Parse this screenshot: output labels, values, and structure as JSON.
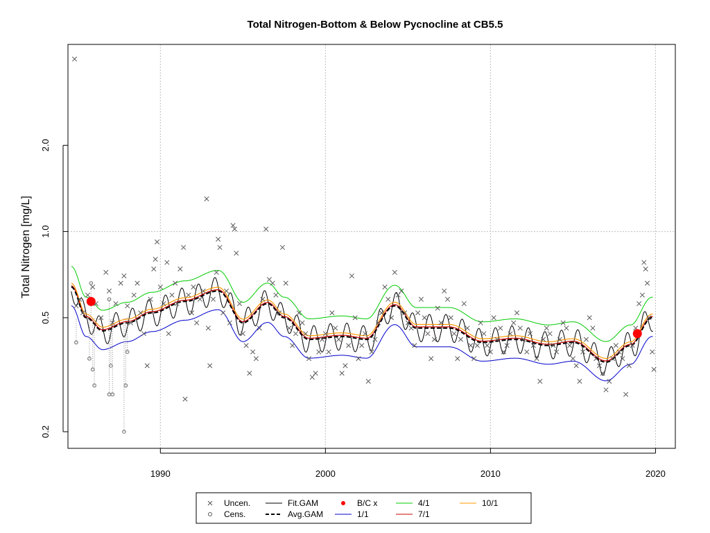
{
  "chart_data": {
    "type": "scatter",
    "title": "Total Nitrogen-Bottom & Below Pycnocline at CB5.5",
    "xlabel": "",
    "ylabel": "Total Nitrogen [mg/L]",
    "log_y": true,
    "grid": true,
    "xlim": [
      1984.4,
      2021.2
    ],
    "ylim": [
      0.175,
      4.5
    ],
    "x_ticks": [
      1990,
      2000,
      2010,
      2020
    ],
    "x_tick_labels": [
      "1990",
      "2000",
      "2010",
      "2020"
    ],
    "y_ticks": [
      0.2,
      0.5,
      1.0,
      2.0
    ],
    "y_tick_labels": [
      "0.2",
      "0.5",
      "1.0",
      "2.0"
    ],
    "h_gridline_y": 1.0,
    "legend_position": "bottom",
    "legend": [
      {
        "label": "Uncen.",
        "style": "x-marker",
        "color": "#555555"
      },
      {
        "label": "Cens.",
        "style": "circle-marker",
        "color": "#555555"
      },
      {
        "label": "Fit.GAM",
        "style": "line",
        "color": "#000000"
      },
      {
        "label": "Avg.GAM",
        "style": "dashed-thick",
        "color": "#000000"
      },
      {
        "label": "B/C x",
        "style": "red-dot",
        "color": "#ff0000"
      },
      {
        "label": "1/1",
        "style": "line",
        "color": "#0000cc"
      },
      {
        "label": "4/1",
        "style": "line",
        "color": "#00cc00"
      },
      {
        "label": "7/1",
        "style": "line",
        "color": "#cc0000"
      },
      {
        "label": "10/1",
        "style": "line",
        "color": "#ff9900"
      }
    ],
    "series": [
      {
        "name": "Uncen.",
        "style": "x",
        "points": [
          [
            1984.8,
            4.0
          ],
          [
            1984.9,
            0.55
          ],
          [
            1985.1,
            0.58
          ],
          [
            1985.3,
            0.52
          ],
          [
            1985.6,
            0.6
          ],
          [
            1985.9,
            0.64
          ],
          [
            1986.1,
            0.56
          ],
          [
            1986.4,
            0.5
          ],
          [
            1986.7,
            0.72
          ],
          [
            1986.9,
            0.62
          ],
          [
            1987.1,
            0.48
          ],
          [
            1987.3,
            0.56
          ],
          [
            1987.6,
            0.66
          ],
          [
            1987.8,
            0.7
          ],
          [
            1988.0,
            0.55
          ],
          [
            1988.2,
            0.48
          ],
          [
            1988.4,
            0.6
          ],
          [
            1988.6,
            0.66
          ],
          [
            1988.8,
            0.52
          ],
          [
            1989.0,
            0.44
          ],
          [
            1989.2,
            0.34
          ],
          [
            1989.4,
            0.58
          ],
          [
            1989.6,
            0.74
          ],
          [
            1989.7,
            0.8
          ],
          [
            1989.8,
            0.92
          ],
          [
            1990.0,
            0.64
          ],
          [
            1990.2,
            0.56
          ],
          [
            1990.4,
            0.78
          ],
          [
            1990.5,
            0.44
          ],
          [
            1990.7,
            0.6
          ],
          [
            1990.9,
            0.66
          ],
          [
            1991.0,
            0.56
          ],
          [
            1991.2,
            0.74
          ],
          [
            1991.4,
            0.88
          ],
          [
            1991.5,
            0.26
          ],
          [
            1991.7,
            0.6
          ],
          [
            1991.9,
            0.52
          ],
          [
            1992.0,
            0.64
          ],
          [
            1992.2,
            0.48
          ],
          [
            1992.4,
            0.58
          ],
          [
            1992.6,
            0.62
          ],
          [
            1992.8,
            1.3
          ],
          [
            1992.9,
            0.46
          ],
          [
            1993.0,
            0.34
          ],
          [
            1993.2,
            0.58
          ],
          [
            1993.4,
            0.72
          ],
          [
            1993.5,
            0.94
          ],
          [
            1993.6,
            0.88
          ],
          [
            1993.8,
            0.52
          ],
          [
            1994.0,
            0.62
          ],
          [
            1994.2,
            0.48
          ],
          [
            1994.4,
            1.05
          ],
          [
            1994.5,
            1.02
          ],
          [
            1994.6,
            0.84
          ],
          [
            1994.8,
            0.56
          ],
          [
            1995.0,
            0.44
          ],
          [
            1995.2,
            0.4
          ],
          [
            1995.4,
            0.32
          ],
          [
            1995.6,
            0.38
          ],
          [
            1995.8,
            0.36
          ],
          [
            1996.0,
            0.46
          ],
          [
            1996.2,
            0.58
          ],
          [
            1996.4,
            1.02
          ],
          [
            1996.6,
            0.68
          ],
          [
            1996.8,
            0.66
          ],
          [
            1997.0,
            0.6
          ],
          [
            1997.2,
            0.52
          ],
          [
            1997.4,
            0.88
          ],
          [
            1997.6,
            0.66
          ],
          [
            1997.8,
            0.46
          ],
          [
            1998.0,
            0.4
          ],
          [
            1998.2,
            0.44
          ],
          [
            1998.4,
            0.52
          ],
          [
            1998.6,
            0.48
          ],
          [
            1998.8,
            0.44
          ],
          [
            1999.0,
            0.36
          ],
          [
            1999.2,
            0.31
          ],
          [
            1999.4,
            0.32
          ],
          [
            1999.6,
            0.38
          ],
          [
            1999.8,
            0.42
          ],
          [
            2000.0,
            0.44
          ],
          [
            2000.2,
            0.38
          ],
          [
            2000.4,
            0.52
          ],
          [
            2000.6,
            0.46
          ],
          [
            2000.8,
            0.42
          ],
          [
            2001.0,
            0.32
          ],
          [
            2001.2,
            0.34
          ],
          [
            2001.4,
            0.4
          ],
          [
            2001.6,
            0.7
          ],
          [
            2001.8,
            0.5
          ],
          [
            2002.0,
            0.36
          ],
          [
            2002.2,
            0.4
          ],
          [
            2002.4,
            0.44
          ],
          [
            2002.6,
            0.3
          ],
          [
            2002.8,
            0.38
          ],
          [
            2003.0,
            0.42
          ],
          [
            2003.2,
            0.48
          ],
          [
            2003.4,
            0.52
          ],
          [
            2003.6,
            0.64
          ],
          [
            2003.8,
            0.58
          ],
          [
            2004.0,
            0.5
          ],
          [
            2004.2,
            0.72
          ],
          [
            2004.4,
            0.6
          ],
          [
            2004.6,
            0.62
          ],
          [
            2004.8,
            0.52
          ],
          [
            2005.0,
            0.48
          ],
          [
            2005.2,
            0.46
          ],
          [
            2005.4,
            0.4
          ],
          [
            2005.6,
            0.52
          ],
          [
            2005.8,
            0.58
          ],
          [
            2006.0,
            0.5
          ],
          [
            2006.2,
            0.44
          ],
          [
            2006.4,
            0.36
          ],
          [
            2006.6,
            0.42
          ],
          [
            2006.8,
            0.54
          ],
          [
            2007.0,
            0.48
          ],
          [
            2007.2,
            0.62
          ],
          [
            2007.4,
            0.58
          ],
          [
            2007.6,
            0.5
          ],
          [
            2007.8,
            0.44
          ],
          [
            2008.0,
            0.36
          ],
          [
            2008.2,
            0.42
          ],
          [
            2008.4,
            0.56
          ],
          [
            2008.6,
            0.46
          ],
          [
            2008.8,
            0.4
          ],
          [
            2009.0,
            0.36
          ],
          [
            2009.2,
            0.4
          ],
          [
            2009.4,
            0.48
          ],
          [
            2009.6,
            0.44
          ],
          [
            2009.8,
            0.4
          ],
          [
            2010.0,
            0.38
          ],
          [
            2010.2,
            0.5
          ],
          [
            2010.4,
            0.42
          ],
          [
            2010.6,
            0.46
          ],
          [
            2010.8,
            0.38
          ],
          [
            2011.0,
            0.4
          ],
          [
            2011.2,
            0.44
          ],
          [
            2011.4,
            0.48
          ],
          [
            2011.6,
            0.52
          ],
          [
            2011.8,
            0.46
          ],
          [
            2012.0,
            0.42
          ],
          [
            2012.2,
            0.38
          ],
          [
            2012.4,
            0.44
          ],
          [
            2012.6,
            0.4
          ],
          [
            2012.8,
            0.36
          ],
          [
            2013.0,
            0.3
          ],
          [
            2013.2,
            0.42
          ],
          [
            2013.4,
            0.46
          ],
          [
            2013.6,
            0.44
          ],
          [
            2013.8,
            0.4
          ],
          [
            2014.0,
            0.38
          ],
          [
            2014.2,
            0.42
          ],
          [
            2014.4,
            0.48
          ],
          [
            2014.6,
            0.46
          ],
          [
            2014.8,
            0.4
          ],
          [
            2015.0,
            0.36
          ],
          [
            2015.2,
            0.34
          ],
          [
            2015.4,
            0.3
          ],
          [
            2015.6,
            0.38
          ],
          [
            2015.8,
            0.42
          ],
          [
            2016.0,
            0.5
          ],
          [
            2016.2,
            0.46
          ],
          [
            2016.4,
            0.36
          ],
          [
            2016.6,
            0.34
          ],
          [
            2016.8,
            0.32
          ],
          [
            2017.0,
            0.28
          ],
          [
            2017.2,
            0.3
          ],
          [
            2017.4,
            0.36
          ],
          [
            2017.6,
            0.4
          ],
          [
            2017.8,
            0.38
          ],
          [
            2018.0,
            0.36
          ],
          [
            2018.2,
            0.27
          ],
          [
            2018.4,
            0.34
          ],
          [
            2018.6,
            0.4
          ],
          [
            2018.8,
            0.46
          ],
          [
            2019.0,
            0.56
          ],
          [
            2019.2,
            0.6
          ],
          [
            2019.3,
            0.78
          ],
          [
            2019.4,
            0.74
          ],
          [
            2019.5,
            0.66
          ],
          [
            2019.6,
            0.5
          ],
          [
            2019.8,
            0.38
          ],
          [
            2019.9,
            0.33
          ]
        ]
      },
      {
        "name": "Cens.",
        "style": "o",
        "points": [
          [
            1984.9,
            0.41
          ],
          [
            1985.7,
            0.36
          ],
          [
            1985.9,
            0.33
          ],
          [
            1986.0,
            0.29
          ],
          [
            1986.9,
            0.27
          ],
          [
            1987.0,
            0.34
          ],
          [
            1987.1,
            0.27
          ],
          [
            1987.8,
            0.2
          ],
          [
            1987.9,
            0.29
          ],
          [
            1988.0,
            0.38
          ],
          [
            1985.8,
            0.66
          ],
          [
            1986.9,
            0.58
          ]
        ]
      },
      {
        "name": "B/C x",
        "style": "red-dot",
        "points": [
          [
            1985.8,
            0.57
          ],
          [
            2018.9,
            0.44
          ]
        ]
      }
    ]
  }
}
